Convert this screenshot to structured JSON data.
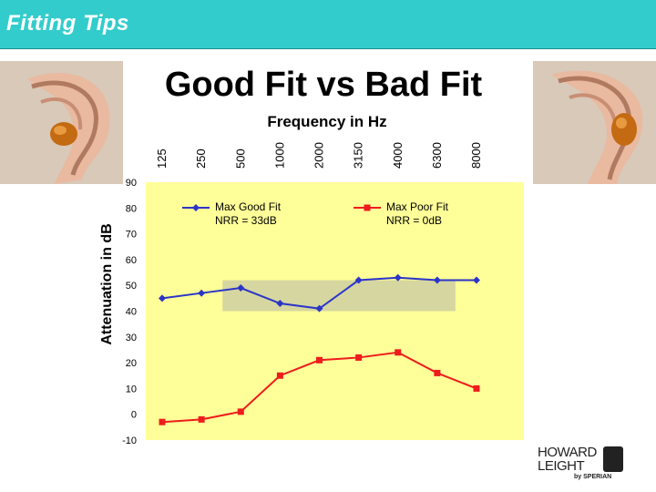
{
  "header": {
    "title": "Fitting Tips"
  },
  "logo": {
    "line1": "HOWARD",
    "line2": "LEIGHT",
    "by": "by SPERIAN"
  },
  "chart_data": {
    "type": "line",
    "title": "Good Fit vs Bad Fit",
    "xlabel": "Frequency in Hz",
    "ylabel": "Attenuation in dB",
    "categories": [
      "125",
      "250",
      "500",
      "1000",
      "2000",
      "3150",
      "4000",
      "6300",
      "8000"
    ],
    "ylim": [
      -10,
      90
    ],
    "yticks": [
      90,
      80,
      70,
      60,
      50,
      40,
      30,
      20,
      10,
      0,
      -10
    ],
    "x_axis_position": "top",
    "legend_placement": "inside-top",
    "band": {
      "x_from": "500",
      "x_to": "6300",
      "y_from": 40,
      "y_to": 52
    },
    "series": [
      {
        "name": "Max Good Fit",
        "label_line2": "NRR = 33dB",
        "color": "#2b35c8",
        "marker": "diamond",
        "values": [
          45,
          47,
          49,
          43,
          41,
          52,
          53,
          52,
          52
        ]
      },
      {
        "name": "Max Poor Fit",
        "label_line2": "NRR = 0dB",
        "color": "#ee1c1c",
        "marker": "square",
        "values": [
          -3,
          -2,
          1,
          15,
          21,
          22,
          24,
          16,
          10
        ]
      }
    ],
    "colors": {
      "plot_bg": "#ffff99",
      "band": "#d6d6a0"
    }
  }
}
